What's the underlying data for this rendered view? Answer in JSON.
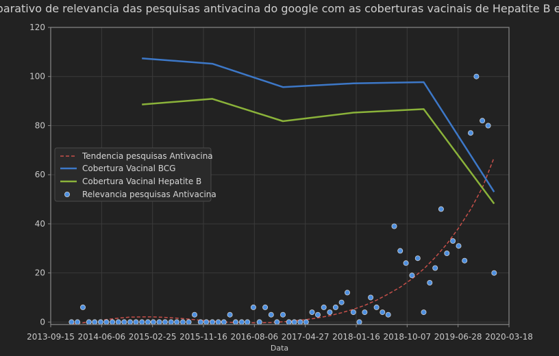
{
  "chart_data": {
    "type": "line",
    "title": "Comparativo de relevancia das pesquisas antivacina do google com as coberturas vacinais de Hepatite B e BCG",
    "xlabel": "Data",
    "ylabel": "",
    "xlim": [
      "2013-09-15",
      "2020-03-18"
    ],
    "ylim": [
      -1,
      120
    ],
    "x_ticks": [
      "2013-09-15",
      "2014-06-06",
      "2015-02-25",
      "2015-11-16",
      "2016-08-06",
      "2017-04-27",
      "2018-01-16",
      "2018-10-07",
      "2019-06-28",
      "2020-03-18"
    ],
    "y_ticks": [
      0,
      20,
      40,
      60,
      80,
      100,
      120
    ],
    "grid": true,
    "legend_position": "center-left",
    "colors": {
      "background": "#222222",
      "grid": "#3a3a3a",
      "axes": "#8a8a8a",
      "bcg": "#3d78c8",
      "hepb": "#8bb33a",
      "trend": "#c8504a",
      "scatter": "#4d8fe0"
    },
    "legend": [
      "Tendencia pesquisas Antivacina",
      "Cobertura Vacinal BCG",
      "Cobertura Vacinal Hepatite B",
      "Relevancia pesquisas Antivacina"
    ],
    "series": [
      {
        "name": "Cobertura Vacinal BCG",
        "type": "line",
        "x": [
          "2015-01-01",
          "2016-01-01",
          "2017-01-01",
          "2018-01-01",
          "2019-01-01",
          "2020-01-01"
        ],
        "y": [
          107.4,
          105.2,
          95.7,
          97.2,
          97.7,
          53
        ]
      },
      {
        "name": "Cobertura Vacinal Hepatite B",
        "type": "line",
        "x": [
          "2015-01-01",
          "2016-01-01",
          "2017-01-01",
          "2018-01-01",
          "2019-01-01",
          "2020-01-01"
        ],
        "y": [
          88.6,
          90.9,
          81.8,
          85.3,
          86.7,
          48.2
        ]
      },
      {
        "name": "Tendencia pesquisas Antivacina",
        "type": "trend",
        "x": [
          "2014-01-01",
          "2014-03-01",
          "2014-05-01",
          "2014-07-01",
          "2014-09-01",
          "2014-11-01",
          "2015-01-01",
          "2015-03-01",
          "2015-05-01",
          "2015-07-01",
          "2015-09-01",
          "2015-11-01",
          "2016-01-01",
          "2016-03-01",
          "2016-05-01",
          "2016-07-01",
          "2016-09-01",
          "2016-11-01",
          "2017-01-01",
          "2017-03-01",
          "2017-05-01",
          "2017-07-01",
          "2017-09-01",
          "2017-11-01",
          "2018-01-01",
          "2018-03-01",
          "2018-05-01",
          "2018-07-01",
          "2018-09-01",
          "2018-11-01",
          "2019-01-01",
          "2019-03-01",
          "2019-05-01",
          "2019-07-01",
          "2019-09-01",
          "2019-11-01",
          "2020-01-01"
        ],
        "y": [
          -0.8,
          -0.3,
          0.4,
          1.0,
          1.6,
          2.0,
          2.1,
          2.1,
          1.9,
          1.6,
          1.2,
          0.7,
          0.3,
          0.0,
          -0.2,
          -0.3,
          -0.3,
          -0.2,
          0.1,
          0.5,
          1.0,
          1.7,
          2.6,
          3.8,
          5.2,
          6.8,
          8.9,
          11.4,
          14.2,
          17.6,
          21.6,
          26.3,
          31.8,
          38.3,
          45.9,
          54.7,
          67
        ]
      },
      {
        "name": "Relevancia pesquisas Antivacina",
        "type": "scatter",
        "x": [
          "2014-01-01",
          "2014-02-01",
          "2014-03-01",
          "2014-04-01",
          "2014-05-01",
          "2014-06-01",
          "2014-07-01",
          "2014-08-01",
          "2014-09-01",
          "2014-10-01",
          "2014-11-01",
          "2014-12-01",
          "2015-01-01",
          "2015-02-01",
          "2015-03-01",
          "2015-04-01",
          "2015-05-01",
          "2015-06-01",
          "2015-07-01",
          "2015-08-01",
          "2015-09-01",
          "2015-10-01",
          "2015-11-01",
          "2015-12-01",
          "2016-01-01",
          "2016-02-01",
          "2016-03-01",
          "2016-04-01",
          "2016-05-01",
          "2016-06-01",
          "2016-07-01",
          "2016-08-01",
          "2016-09-01",
          "2016-10-01",
          "2016-11-01",
          "2016-12-01",
          "2017-01-01",
          "2017-02-01",
          "2017-03-01",
          "2017-04-01",
          "2017-05-01",
          "2017-06-01",
          "2017-07-01",
          "2017-08-01",
          "2017-09-01",
          "2017-10-01",
          "2017-11-01",
          "2017-12-01",
          "2018-01-01",
          "2018-02-01",
          "2018-03-01",
          "2018-04-01",
          "2018-05-01",
          "2018-06-01",
          "2018-07-01",
          "2018-08-01",
          "2018-09-01",
          "2018-10-01",
          "2018-11-01",
          "2018-12-01",
          "2019-01-01",
          "2019-02-01",
          "2019-03-01",
          "2019-04-01",
          "2019-05-01",
          "2019-06-01",
          "2019-07-01",
          "2019-08-01",
          "2019-09-01",
          "2019-10-01",
          "2019-11-01",
          "2019-12-01",
          "2020-01-01"
        ],
        "y": [
          0,
          0,
          6,
          0,
          0,
          0,
          0,
          0,
          0,
          0,
          0,
          0,
          0,
          0,
          0,
          0,
          0,
          0,
          0,
          0,
          0,
          3,
          0,
          0,
          0,
          0,
          0,
          3,
          0,
          0,
          0,
          6,
          0,
          6,
          3,
          0,
          3,
          0,
          0,
          0,
          0,
          4,
          3,
          6,
          4,
          6,
          8,
          12,
          4,
          0,
          4,
          10,
          6,
          4,
          3,
          39,
          29,
          24,
          19,
          26,
          4,
          16,
          22,
          46,
          28,
          33,
          31,
          25,
          77,
          100,
          82,
          80,
          20
        ]
      }
    ]
  }
}
